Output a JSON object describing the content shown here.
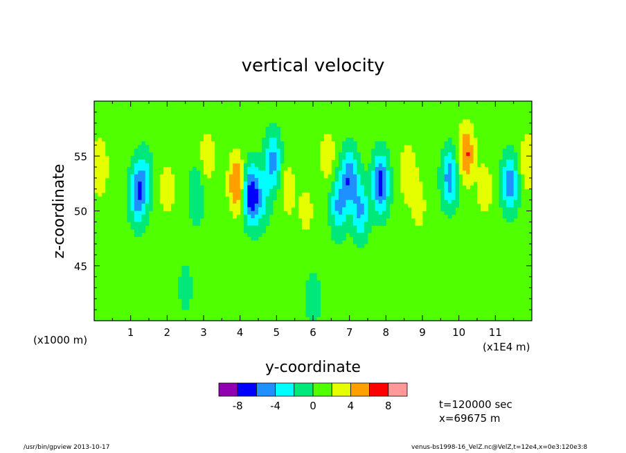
{
  "chart_data": {
    "type": "heatmap",
    "title": "vertical velocity",
    "xlabel": "y-coordinate",
    "ylabel": "z-coordinate",
    "x_unit_note": "(x1E4 m)",
    "y_unit_note": "(x1000 m)",
    "xlim": [
      0,
      12
    ],
    "ylim": [
      40,
      60
    ],
    "x_ticks": [
      1,
      2,
      3,
      4,
      5,
      6,
      7,
      8,
      9,
      10,
      11
    ],
    "y_ticks": [
      45,
      50,
      55
    ],
    "colorbar": {
      "colors": [
        "#9000b0",
        "#0000ff",
        "#1e90ff",
        "#00ffff",
        "#00e87a",
        "#50ff00",
        "#e6ff00",
        "#ffa000",
        "#ff0000",
        "#ff9999"
      ],
      "tick_labels": [
        "-8",
        "-4",
        "0",
        "4",
        "8"
      ],
      "tick_values": [
        -8,
        -4,
        0,
        4,
        8
      ],
      "range": [
        -10,
        10
      ],
      "step": 2
    },
    "features": [
      {
        "y": 0.15,
        "z": 54,
        "value": 3.2
      },
      {
        "y": 1.2,
        "z": 51.5,
        "value": -6.5
      },
      {
        "y": 1.4,
        "z": 53,
        "value": -3
      },
      {
        "y": 2.0,
        "z": 52,
        "value": 2.5
      },
      {
        "y": 2.8,
        "z": 51.5,
        "value": -2.5
      },
      {
        "y": 3.1,
        "z": 55,
        "value": 2.5
      },
      {
        "y": 3.9,
        "z": 52.5,
        "value": 5.5
      },
      {
        "y": 4.3,
        "z": 51.5,
        "value": -8.5
      },
      {
        "y": 4.6,
        "z": 51,
        "value": -3
      },
      {
        "y": 4.9,
        "z": 54.5,
        "value": -5.5
      },
      {
        "y": 5.3,
        "z": 52,
        "value": 2.5
      },
      {
        "y": 5.8,
        "z": 50,
        "value": 2
      },
      {
        "y": 6.4,
        "z": 55,
        "value": 2.5
      },
      {
        "y": 6.7,
        "z": 50.5,
        "value": -5
      },
      {
        "y": 7.0,
        "z": 53,
        "value": -6.5
      },
      {
        "y": 7.3,
        "z": 50,
        "value": -5
      },
      {
        "y": 7.85,
        "z": 52.5,
        "value": -8
      },
      {
        "y": 8.6,
        "z": 53.5,
        "value": 3.2
      },
      {
        "y": 8.9,
        "z": 50.5,
        "value": 2
      },
      {
        "y": 9.75,
        "z": 53,
        "value": -6
      },
      {
        "y": 10.2,
        "z": 55.2,
        "value": 5.5
      },
      {
        "y": 10.7,
        "z": 52,
        "value": 2.5
      },
      {
        "y": 11.4,
        "z": 52.5,
        "value": -6
      },
      {
        "y": 11.9,
        "z": 54.5,
        "value": 3.2
      },
      {
        "y": 6.0,
        "z": 42,
        "value": -2
      },
      {
        "y": 2.5,
        "z": 43,
        "value": -1.5
      }
    ]
  },
  "annotations": {
    "time": "t=120000 sec",
    "position": "x=69675 m"
  },
  "footer": {
    "left": "/usr/bin/gpview  2013-10-17",
    "right": "venus-bs1998-16_VelZ.nc@VelZ,t=12e4,x=0e3:120e3:8"
  }
}
